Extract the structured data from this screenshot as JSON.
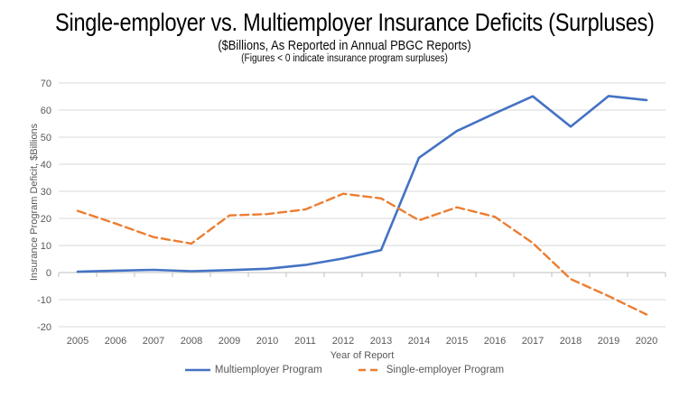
{
  "title": "Single-employer vs. Multiemployer Insurance Deficits (Surpluses)",
  "subtitle": "($Billions, As Reported in Annual PBGC Reports)",
  "note": "(Figures < 0 indicate insurance program surpluses)",
  "colors": {
    "multiemployer_line": "#4472C4",
    "single_employer_line": "#ED7D31",
    "gridline": "#D9D9D9",
    "axis_line": "#BFBFBF",
    "axis_text": "#595959",
    "title_text": "#000000"
  },
  "chart_data": {
    "type": "line",
    "title": "Single-employer vs. Multiemployer Insurance Deficits (Surpluses)",
    "subtitle": "($Billions, As Reported in Annual PBGC Reports)",
    "note": "(Figures < 0 indicate insurance program surpluses)",
    "categories": [
      "2005",
      "2006",
      "2007",
      "2008",
      "2009",
      "2010",
      "2011",
      "2012",
      "2013",
      "2014",
      "2015",
      "2016",
      "2017",
      "2018",
      "2019",
      "2020"
    ],
    "series": [
      {
        "name": "Multiemployer Program",
        "style": "solid",
        "color": "#4472C4",
        "values": [
          0.3,
          0.7,
          1.0,
          0.5,
          0.9,
          1.4,
          2.8,
          5.2,
          8.3,
          42.4,
          52.3,
          58.8,
          65.1,
          53.9,
          65.2,
          63.7
        ]
      },
      {
        "name": "Single-employer Program",
        "style": "dashed",
        "color": "#ED7D31",
        "values": [
          22.8,
          18.1,
          13.1,
          10.7,
          21.1,
          21.6,
          23.3,
          29.1,
          27.4,
          19.3,
          24.1,
          20.6,
          10.9,
          -2.4,
          -8.7,
          -15.5
        ]
      }
    ],
    "xlabel": "Year of Report",
    "ylabel": "Insurance Program Deficit, $Billions",
    "ylim": [
      -20,
      70
    ],
    "ytick_interval": 10,
    "yticks": [
      70,
      60,
      50,
      40,
      30,
      20,
      10,
      0,
      -10,
      -20
    ],
    "grid": true,
    "legend_position": "bottom"
  }
}
